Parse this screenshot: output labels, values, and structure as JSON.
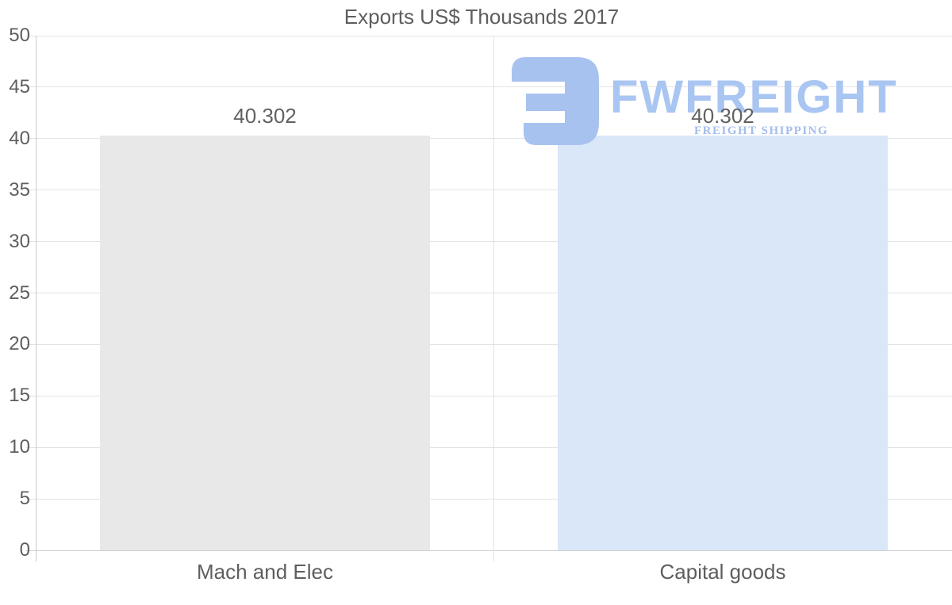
{
  "chart_data": {
    "type": "bar",
    "title": "Exports US$ Thousands 2017",
    "categories": [
      "Mach and Elec",
      "Capital goods"
    ],
    "values": [
      40.302,
      40.302
    ],
    "value_labels": [
      "40.302",
      "40.302"
    ],
    "bar_colors": [
      "#e8e8e8",
      "#d9e7f8"
    ],
    "ylim": [
      0,
      50
    ],
    "yticks": [
      0,
      5,
      10,
      15,
      20,
      25,
      30,
      35,
      40,
      45,
      50
    ],
    "xlabel": "",
    "ylabel": "",
    "grid": true,
    "legend": "none"
  },
  "watermark": {
    "wordmark": "FWFREIGHT",
    "subtitle": "FREIGHT SHIPPING",
    "icon": "fwfreight-logo-mark",
    "icon_color": "#a8c2f0",
    "wordmark_color": "#a9c5f2",
    "subtitle_color": "#a3bdee"
  },
  "colors": {
    "background": "#ffffff",
    "text": "#5e5e5e",
    "gridline": "#e3e3e3",
    "axis_line": "#cbcbcb",
    "baseline": "#d0d0d0"
  }
}
